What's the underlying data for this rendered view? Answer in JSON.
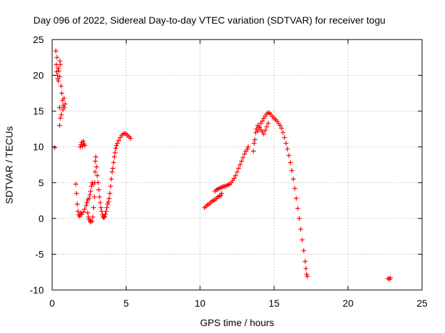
{
  "chart_data": {
    "type": "scatter",
    "title": "Day 096 of 2022, Sidereal Day-to-day VTEC variation (SDTVAR) for receiver togu",
    "xlabel": "GPS time / hours",
    "ylabel": "SDTVAR / TECUs",
    "xlim": [
      0,
      25
    ],
    "ylim": [
      -10,
      25
    ],
    "xticks": [
      0,
      5,
      10,
      15,
      20,
      25
    ],
    "yticks": [
      -10,
      -5,
      0,
      5,
      10,
      15,
      20,
      25
    ],
    "xtick_labels": [
      "0",
      "5",
      "10",
      "15",
      "20",
      "25"
    ],
    "ytick_labels": [
      "-10",
      "-5",
      "0",
      "5",
      "10",
      "15",
      "20",
      "25"
    ],
    "grid": true,
    "marker": "plus",
    "color": "#ff0000",
    "series": [
      {
        "name": "SDTVAR",
        "points": [
          [
            0.17,
            9.9
          ],
          [
            0.25,
            23.4
          ],
          [
            0.28,
            21.5
          ],
          [
            0.3,
            20.5
          ],
          [
            0.33,
            22.5
          ],
          [
            0.35,
            20.0
          ],
          [
            0.38,
            19.5
          ],
          [
            0.4,
            21.0
          ],
          [
            0.42,
            19.2
          ],
          [
            0.45,
            20.6
          ],
          [
            0.5,
            19.8
          ],
          [
            0.5,
            15.5
          ],
          [
            0.5,
            13.0
          ],
          [
            0.52,
            22.0
          ],
          [
            0.55,
            21.5
          ],
          [
            0.55,
            14.0
          ],
          [
            0.6,
            18.5
          ],
          [
            0.62,
            14.5
          ],
          [
            0.65,
            17.5
          ],
          [
            0.7,
            16.5
          ],
          [
            0.72,
            15.2
          ],
          [
            0.75,
            15.8
          ],
          [
            0.8,
            16.8
          ],
          [
            0.82,
            15.5
          ],
          [
            0.88,
            16.0
          ],
          [
            1.6,
            4.8
          ],
          [
            1.65,
            3.5
          ],
          [
            1.7,
            2.0
          ],
          [
            1.75,
            1.0
          ],
          [
            1.8,
            0.5
          ],
          [
            1.85,
            0.3
          ],
          [
            1.9,
            0.5
          ],
          [
            1.95,
            0.8
          ],
          [
            1.9,
            10.0
          ],
          [
            1.95,
            10.3
          ],
          [
            2.0,
            10.6
          ],
          [
            2.05,
            10.1
          ],
          [
            2.1,
            10.8
          ],
          [
            2.15,
            10.4
          ],
          [
            2.2,
            10.2
          ],
          [
            2.0,
            0.6
          ],
          [
            2.1,
            0.9
          ],
          [
            2.2,
            1.3
          ],
          [
            2.3,
            1.8
          ],
          [
            2.35,
            2.2
          ],
          [
            2.4,
            2.6
          ],
          [
            2.5,
            2.8
          ],
          [
            2.55,
            3.3
          ],
          [
            2.6,
            3.8
          ],
          [
            2.65,
            4.5
          ],
          [
            2.7,
            5.0
          ],
          [
            2.75,
            4.8
          ],
          [
            2.4,
            0.8
          ],
          [
            2.45,
            0.2
          ],
          [
            2.5,
            -0.1
          ],
          [
            2.55,
            -0.3
          ],
          [
            2.6,
            -0.5
          ],
          [
            2.7,
            -0.4
          ],
          [
            2.75,
            0.2
          ],
          [
            2.8,
            1.5
          ],
          [
            2.85,
            3.0
          ],
          [
            2.88,
            5.0
          ],
          [
            2.9,
            6.5
          ],
          [
            2.92,
            8.0
          ],
          [
            2.95,
            8.6
          ],
          [
            3.0,
            7.2
          ],
          [
            3.05,
            6.0
          ],
          [
            3.1,
            5.0
          ],
          [
            3.15,
            4.0
          ],
          [
            3.2,
            3.0
          ],
          [
            3.25,
            2.2
          ],
          [
            3.3,
            1.5
          ],
          [
            3.35,
            1.0
          ],
          [
            3.4,
            0.5
          ],
          [
            3.45,
            0.2
          ],
          [
            3.5,
            0.1
          ],
          [
            3.55,
            0.3
          ],
          [
            3.6,
            0.6
          ],
          [
            3.65,
            1.0
          ],
          [
            3.7,
            1.5
          ],
          [
            3.75,
            2.0
          ],
          [
            3.8,
            2.3
          ],
          [
            3.85,
            2.8
          ],
          [
            3.9,
            3.5
          ],
          [
            3.95,
            4.5
          ],
          [
            4.0,
            5.5
          ],
          [
            4.05,
            6.5
          ],
          [
            4.1,
            7.0
          ],
          [
            4.15,
            7.8
          ],
          [
            4.2,
            8.6
          ],
          [
            4.25,
            9.2
          ],
          [
            4.3,
            9.8
          ],
          [
            4.35,
            10.2
          ],
          [
            4.4,
            10.5
          ],
          [
            4.5,
            10.9
          ],
          [
            4.6,
            11.3
          ],
          [
            4.7,
            11.6
          ],
          [
            4.8,
            11.8
          ],
          [
            4.9,
            11.9
          ],
          [
            5.0,
            11.8
          ],
          [
            5.1,
            11.6
          ],
          [
            5.2,
            11.4
          ],
          [
            5.3,
            11.2
          ],
          [
            10.3,
            1.5
          ],
          [
            10.4,
            1.7
          ],
          [
            10.5,
            1.9
          ],
          [
            10.6,
            2.0
          ],
          [
            10.7,
            2.2
          ],
          [
            10.8,
            2.4
          ],
          [
            10.9,
            2.5
          ],
          [
            11.0,
            2.6
          ],
          [
            11.1,
            2.8
          ],
          [
            11.2,
            3.0
          ],
          [
            11.3,
            3.1
          ],
          [
            11.4,
            3.2
          ],
          [
            11.45,
            3.5
          ],
          [
            11.0,
            3.8
          ],
          [
            11.1,
            4.0
          ],
          [
            11.2,
            4.1
          ],
          [
            11.3,
            4.2
          ],
          [
            11.4,
            4.3
          ],
          [
            11.5,
            4.4
          ],
          [
            11.6,
            4.5
          ],
          [
            11.7,
            4.5
          ],
          [
            11.8,
            4.6
          ],
          [
            11.9,
            4.7
          ],
          [
            12.0,
            4.8
          ],
          [
            12.1,
            5.0
          ],
          [
            12.2,
            5.3
          ],
          [
            12.3,
            5.6
          ],
          [
            12.4,
            6.0
          ],
          [
            12.5,
            6.5
          ],
          [
            12.6,
            7.0
          ],
          [
            12.7,
            7.5
          ],
          [
            12.8,
            8.0
          ],
          [
            12.9,
            8.5
          ],
          [
            13.0,
            9.0
          ],
          [
            13.1,
            9.4
          ],
          [
            13.2,
            9.7
          ],
          [
            13.25,
            10.0
          ],
          [
            13.6,
            9.4
          ],
          [
            13.65,
            10.5
          ],
          [
            13.7,
            11.0
          ],
          [
            13.75,
            12.0
          ],
          [
            13.8,
            12.5
          ],
          [
            13.9,
            12.2
          ],
          [
            14.0,
            12.8
          ],
          [
            14.1,
            13.3
          ],
          [
            14.2,
            13.6
          ],
          [
            14.3,
            14.0
          ],
          [
            14.4,
            14.3
          ],
          [
            14.5,
            14.6
          ],
          [
            14.6,
            14.8
          ],
          [
            14.7,
            14.7
          ],
          [
            14.8,
            14.5
          ],
          [
            14.9,
            14.2
          ],
          [
            15.0,
            14.0
          ],
          [
            15.1,
            13.8
          ],
          [
            15.2,
            13.6
          ],
          [
            15.3,
            13.3
          ],
          [
            13.9,
            13.0
          ],
          [
            14.0,
            12.7
          ],
          [
            14.1,
            12.4
          ],
          [
            14.2,
            12.1
          ],
          [
            14.3,
            11.8
          ],
          [
            14.4,
            12.3
          ],
          [
            14.5,
            12.8
          ],
          [
            14.6,
            13.3
          ],
          [
            15.4,
            13.0
          ],
          [
            15.5,
            12.6
          ],
          [
            15.6,
            12.0
          ],
          [
            15.7,
            11.3
          ],
          [
            15.8,
            10.5
          ],
          [
            15.9,
            9.7
          ],
          [
            16.0,
            8.8
          ],
          [
            16.1,
            7.8
          ],
          [
            16.2,
            6.7
          ],
          [
            16.3,
            5.5
          ],
          [
            16.4,
            4.2
          ],
          [
            16.5,
            2.8
          ],
          [
            16.6,
            1.4
          ],
          [
            16.7,
            0.0
          ],
          [
            16.8,
            -1.5
          ],
          [
            16.9,
            -3.0
          ],
          [
            17.0,
            -4.5
          ],
          [
            17.1,
            -6.0
          ],
          [
            17.15,
            -7.0
          ],
          [
            17.2,
            -7.8
          ],
          [
            17.25,
            -8.1
          ],
          [
            22.7,
            -8.4
          ],
          [
            22.8,
            -8.5
          ],
          [
            22.85,
            -8.3
          ]
        ]
      }
    ]
  }
}
